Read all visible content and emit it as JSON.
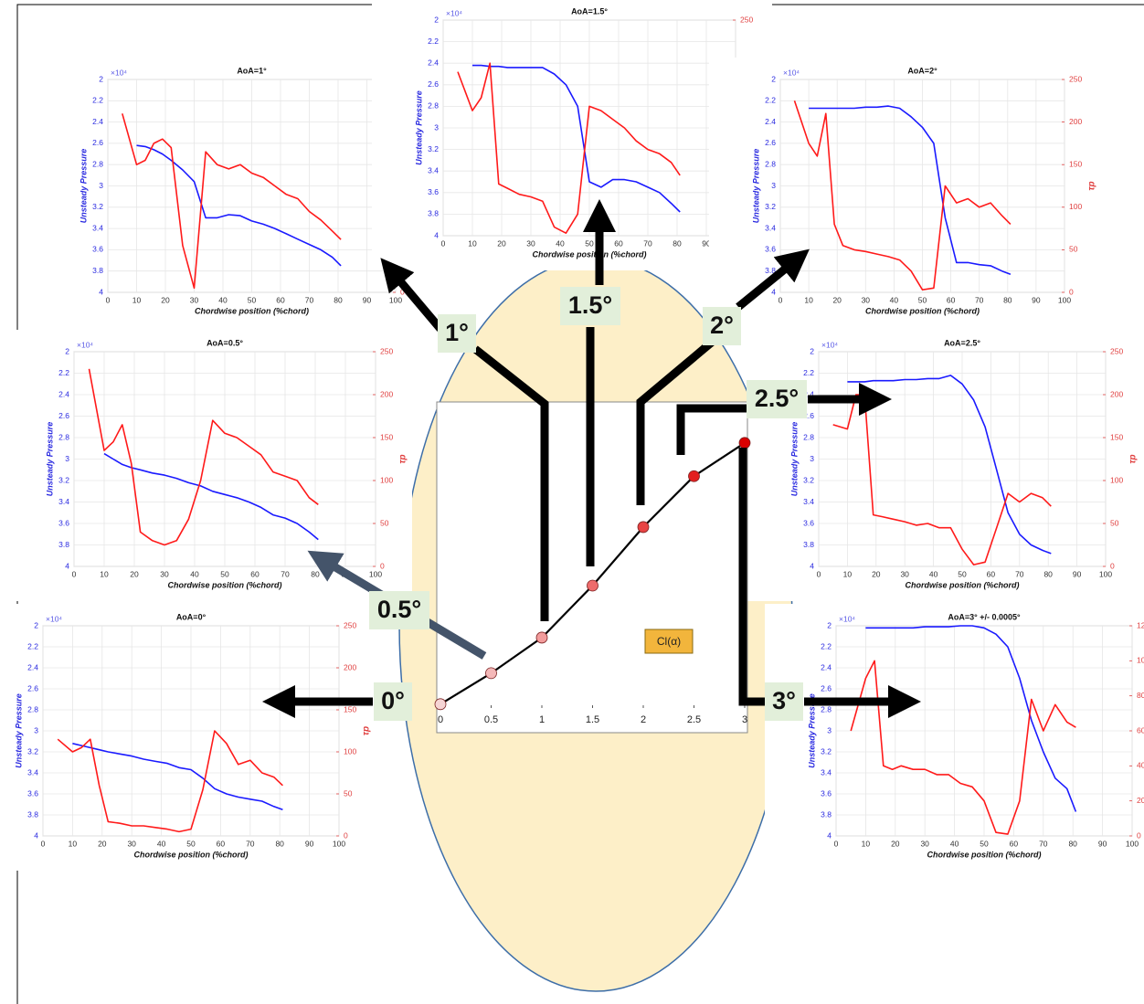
{
  "chart_data": [
    {
      "type": "line",
      "title": "AoA=1°",
      "xlabel": "Chordwise position (%chord)",
      "ylabel": "Unsteady Pressure",
      "y2label": "τp",
      "y_exponent": "×10⁴",
      "y_reversed": true,
      "grid": true,
      "x": [
        5,
        10,
        13,
        16,
        19,
        22,
        26,
        30,
        34,
        38,
        42,
        46,
        50,
        54,
        58,
        62,
        66,
        70,
        74,
        78,
        81
      ],
      "xlim": [
        0,
        100
      ],
      "xticks": [
        0,
        10,
        20,
        30,
        40,
        50,
        60,
        70,
        80,
        90,
        100
      ],
      "ylim": [
        2,
        4
      ],
      "yticks": [
        2,
        2.2,
        2.4,
        2.6,
        2.8,
        3,
        3.2,
        3.4,
        3.6,
        3.8,
        4
      ],
      "y2lim": [
        0,
        250
      ],
      "y2ticks": [
        0,
        50,
        100,
        150,
        200,
        250
      ],
      "series": [
        {
          "color": "#1a1aff",
          "values": [
            null,
            2.62,
            2.63,
            2.66,
            2.7,
            2.76,
            2.85,
            2.96,
            3.3,
            3.3,
            3.27,
            3.28,
            3.33,
            3.36,
            3.4,
            3.45,
            3.5,
            3.55,
            3.6,
            3.67,
            3.75
          ]
        },
        {
          "color": "#ff1a1a",
          "axis": "y2",
          "values": [
            210,
            150,
            155,
            175,
            180,
            170,
            55,
            5,
            165,
            150,
            145,
            150,
            140,
            135,
            125,
            115,
            110,
            95,
            85,
            72,
            62
          ]
        }
      ]
    },
    {
      "type": "line",
      "title": "AoA=1.5°",
      "xlabel": "Chordwise position (%chord)",
      "ylabel": "Unsteady Pressure",
      "y2label": "τp",
      "y_exponent": "×10⁴",
      "y_reversed": true,
      "grid": true,
      "x": [
        5,
        10,
        13,
        16,
        19,
        22,
        26,
        30,
        34,
        38,
        42,
        46,
        50,
        54,
        58,
        62,
        66,
        70,
        74,
        78,
        81
      ],
      "xlim": [
        0,
        100
      ],
      "xticks": [
        0,
        10,
        20,
        30,
        40,
        50,
        60,
        70,
        80,
        90,
        100
      ],
      "ylim": [
        2,
        4
      ],
      "yticks": [
        2,
        2.2,
        2.4,
        2.6,
        2.8,
        3,
        3.2,
        3.4,
        3.6,
        3.8,
        4
      ],
      "y2lim": [
        0,
        250
      ],
      "y2ticks": [
        0,
        50,
        100,
        150,
        200,
        250
      ],
      "series": [
        {
          "color": "#1a1aff",
          "values": [
            null,
            2.42,
            2.42,
            2.43,
            2.43,
            2.44,
            2.44,
            2.44,
            2.44,
            2.5,
            2.6,
            2.8,
            3.5,
            3.55,
            3.48,
            3.48,
            3.5,
            3.55,
            3.6,
            3.7,
            3.78
          ]
        },
        {
          "color": "#ff1a1a",
          "axis": "y2",
          "values": [
            190,
            145,
            160,
            200,
            60,
            55,
            48,
            45,
            40,
            10,
            3,
            25,
            150,
            145,
            135,
            125,
            110,
            100,
            95,
            85,
            70
          ]
        }
      ]
    },
    {
      "type": "line",
      "title": "AoA=2°",
      "xlabel": "Chordwise position (%chord)",
      "ylabel": "Unsteady Pressure",
      "y2label": "τp",
      "y_exponent": "×10⁴",
      "y_reversed": true,
      "grid": true,
      "x": [
        5,
        10,
        13,
        16,
        19,
        22,
        26,
        30,
        34,
        38,
        42,
        46,
        50,
        54,
        58,
        62,
        66,
        70,
        74,
        78,
        81
      ],
      "xlim": [
        0,
        100
      ],
      "xticks": [
        0,
        10,
        20,
        30,
        40,
        50,
        60,
        70,
        80,
        90,
        100
      ],
      "ylim": [
        2,
        4
      ],
      "yticks": [
        2,
        2.2,
        2.4,
        2.6,
        2.8,
        3,
        3.2,
        3.4,
        3.6,
        3.8,
        4
      ],
      "y2lim": [
        0,
        250
      ],
      "y2ticks": [
        0,
        50,
        100,
        150,
        200,
        250
      ],
      "series": [
        {
          "color": "#1a1aff",
          "values": [
            null,
            2.27,
            2.27,
            2.27,
            2.27,
            2.27,
            2.27,
            2.26,
            2.26,
            2.25,
            2.27,
            2.35,
            2.45,
            2.6,
            3.3,
            3.72,
            3.72,
            3.74,
            3.75,
            3.8,
            3.83
          ]
        },
        {
          "color": "#ff1a1a",
          "axis": "y2",
          "values": [
            225,
            175,
            160,
            210,
            80,
            55,
            50,
            48,
            45,
            42,
            38,
            25,
            3,
            5,
            125,
            105,
            110,
            100,
            105,
            90,
            80
          ]
        }
      ]
    },
    {
      "type": "line",
      "title": "AoA=0.5°",
      "xlabel": "Chordwise position (%chord)",
      "ylabel": "Unsteady Pressure",
      "y2label": "τp",
      "y_exponent": "×10⁴",
      "y_reversed": true,
      "grid": true,
      "x": [
        5,
        10,
        13,
        16,
        19,
        22,
        26,
        30,
        34,
        38,
        42,
        46,
        50,
        54,
        58,
        62,
        66,
        70,
        74,
        78,
        81
      ],
      "xlim": [
        0,
        100
      ],
      "xticks": [
        0,
        10,
        20,
        30,
        40,
        50,
        60,
        70,
        80,
        90,
        100
      ],
      "ylim": [
        2,
        4
      ],
      "yticks": [
        2,
        2.2,
        2.4,
        2.6,
        2.8,
        3,
        3.2,
        3.4,
        3.6,
        3.8,
        4
      ],
      "y2lim": [
        0,
        250
      ],
      "y2ticks": [
        0,
        50,
        100,
        150,
        200,
        250
      ],
      "series": [
        {
          "color": "#1a1aff",
          "values": [
            null,
            2.95,
            3.0,
            3.05,
            3.08,
            3.1,
            3.13,
            3.15,
            3.18,
            3.22,
            3.25,
            3.3,
            3.33,
            3.36,
            3.4,
            3.45,
            3.52,
            3.55,
            3.6,
            3.68,
            3.75
          ]
        },
        {
          "color": "#ff1a1a",
          "axis": "y2",
          "values": [
            230,
            135,
            145,
            165,
            120,
            40,
            30,
            25,
            30,
            55,
            100,
            170,
            155,
            150,
            140,
            130,
            110,
            105,
            100,
            80,
            72
          ]
        }
      ]
    },
    {
      "type": "line",
      "title": "AoA=2.5°",
      "xlabel": "Chordwise position (%chord)",
      "ylabel": "Unsteady Pressure",
      "y2label": "τp",
      "y_exponent": "×10⁴",
      "y_reversed": true,
      "grid": true,
      "x": [
        5,
        10,
        13,
        16,
        19,
        22,
        26,
        30,
        34,
        38,
        42,
        46,
        50,
        54,
        58,
        62,
        66,
        70,
        74,
        78,
        81
      ],
      "xlim": [
        0,
        100
      ],
      "xticks": [
        0,
        10,
        20,
        30,
        40,
        50,
        60,
        70,
        80,
        90,
        100
      ],
      "ylim": [
        2,
        4
      ],
      "yticks": [
        2,
        2.2,
        2.4,
        2.6,
        2.8,
        3,
        3.2,
        3.4,
        3.6,
        3.8,
        4
      ],
      "y2lim": [
        0,
        250
      ],
      "y2ticks": [
        0,
        50,
        100,
        150,
        200,
        250
      ],
      "series": [
        {
          "color": "#1a1aff",
          "values": [
            null,
            2.28,
            2.28,
            2.28,
            2.27,
            2.27,
            2.27,
            2.26,
            2.26,
            2.25,
            2.25,
            2.22,
            2.3,
            2.45,
            2.7,
            3.1,
            3.5,
            3.7,
            3.8,
            3.85,
            3.88
          ]
        },
        {
          "color": "#ff1a1a",
          "axis": "y2",
          "values": [
            165,
            160,
            200,
            200,
            60,
            58,
            55,
            52,
            48,
            50,
            45,
            45,
            20,
            2,
            5,
            45,
            85,
            75,
            85,
            80,
            70
          ]
        }
      ]
    },
    {
      "type": "line",
      "title": "AoA=0°",
      "xlabel": "Chordwise position (%chord)",
      "ylabel": "Unsteady Pressure",
      "y2label": "τp",
      "y_exponent": "×10⁴",
      "y_reversed": true,
      "grid": true,
      "x": [
        5,
        10,
        13,
        16,
        19,
        22,
        26,
        30,
        34,
        38,
        42,
        46,
        50,
        54,
        58,
        62,
        66,
        70,
        74,
        78,
        81
      ],
      "xlim": [
        0,
        100
      ],
      "xticks": [
        0,
        10,
        20,
        30,
        40,
        50,
        60,
        70,
        80,
        90,
        100
      ],
      "ylim": [
        2,
        4
      ],
      "yticks": [
        2,
        2.2,
        2.4,
        2.6,
        2.8,
        3,
        3.2,
        3.4,
        3.6,
        3.8,
        4
      ],
      "y2lim": [
        0,
        250
      ],
      "y2ticks": [
        0,
        50,
        100,
        150,
        200,
        250
      ],
      "series": [
        {
          "color": "#1a1aff",
          "values": [
            null,
            3.12,
            3.14,
            3.16,
            3.18,
            3.2,
            3.22,
            3.24,
            3.27,
            3.29,
            3.31,
            3.35,
            3.37,
            3.45,
            3.55,
            3.6,
            3.63,
            3.65,
            3.67,
            3.72,
            3.75
          ]
        },
        {
          "color": "#ff1a1a",
          "axis": "y2",
          "values": [
            115,
            100,
            105,
            115,
            60,
            17,
            15,
            12,
            12,
            10,
            8,
            5,
            8,
            55,
            125,
            110,
            85,
            90,
            75,
            70,
            60
          ]
        }
      ]
    },
    {
      "type": "line",
      "title": "AoA=3° +/- 0.0005°",
      "xlabel": "Chordwise position (%chord)",
      "ylabel": "Unsteady Pressure",
      "y2label": "τp",
      "y_exponent": "×10⁴",
      "y_reversed": true,
      "grid": true,
      "x": [
        5,
        10,
        13,
        16,
        19,
        22,
        26,
        30,
        34,
        38,
        42,
        46,
        50,
        54,
        58,
        62,
        66,
        70,
        74,
        78,
        81
      ],
      "xlim": [
        0,
        100
      ],
      "xticks": [
        0,
        10,
        20,
        30,
        40,
        50,
        60,
        70,
        80,
        90,
        100
      ],
      "ylim": [
        2,
        4
      ],
      "yticks": [
        2,
        2.2,
        2.4,
        2.6,
        2.8,
        3,
        3.2,
        3.4,
        3.6,
        3.8,
        4
      ],
      "y2lim": [
        0,
        120
      ],
      "y2ticks": [
        0,
        20,
        40,
        60,
        80,
        100,
        120
      ],
      "series": [
        {
          "color": "#1a1aff",
          "values": [
            null,
            2.02,
            2.02,
            2.02,
            2.02,
            2.02,
            2.02,
            2.01,
            2.01,
            2.01,
            2.0,
            2.0,
            2.02,
            2.08,
            2.2,
            2.5,
            2.9,
            3.2,
            3.45,
            3.55,
            3.77
          ]
        },
        {
          "color": "#ff1a1a",
          "axis": "y2",
          "values": [
            60,
            90,
            100,
            40,
            38,
            40,
            38,
            38,
            35,
            35,
            30,
            28,
            20,
            2,
            1,
            20,
            78,
            60,
            75,
            65,
            62
          ]
        }
      ]
    },
    {
      "type": "curve",
      "legend": "Cl(α)",
      "color": "#000000",
      "x": [
        0,
        0.5,
        1,
        1.5,
        2,
        2.5,
        3
      ],
      "values": [
        0.1,
        0.91,
        1.84,
        3.2,
        4.73,
        6.06,
        6.93
      ],
      "point_colors": [
        "#f6d5d5",
        "#f4b8b8",
        "#f29c9c",
        "#ee6c6c",
        "#e84444",
        "#e32020",
        "#d90000"
      ],
      "xlim": [
        0,
        3
      ],
      "xticks": [
        0,
        0.5,
        1,
        1.5,
        2,
        2.5,
        3
      ],
      "ylim": [
        0,
        8
      ],
      "annotations": [
        "0°",
        "0.5°",
        "1°",
        "1.5°",
        "2°",
        "2.5°",
        "3°"
      ]
    }
  ]
}
